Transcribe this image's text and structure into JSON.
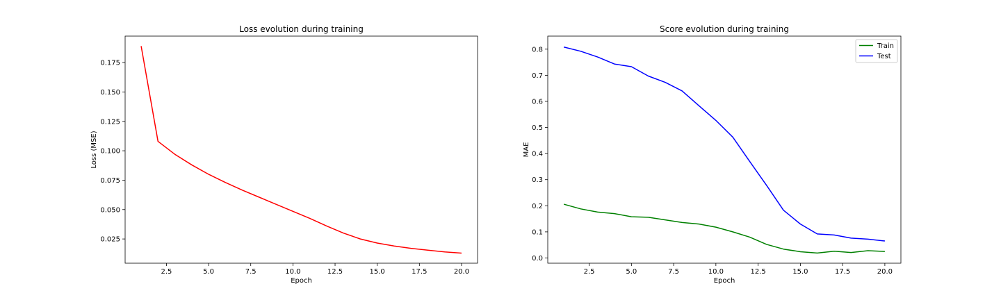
{
  "chart_data": [
    {
      "type": "line",
      "title": "Loss evolution during training",
      "xlabel": "Epoch",
      "ylabel": "Loss (MSE)",
      "xlim": [
        0.05,
        20.95
      ],
      "ylim": [
        0.0044,
        0.1975
      ],
      "xticks": [
        2.5,
        5.0,
        7.5,
        10.0,
        12.5,
        15.0,
        17.5,
        20.0
      ],
      "xtick_labels": [
        "2.5",
        "5.0",
        "7.5",
        "10.0",
        "12.5",
        "15.0",
        "17.5",
        "20.0"
      ],
      "yticks": [
        0.025,
        0.05,
        0.075,
        0.1,
        0.125,
        0.15,
        0.175
      ],
      "ytick_labels": [
        "0.025",
        "0.050",
        "0.075",
        "0.100",
        "0.125",
        "0.150",
        "0.175"
      ],
      "grid": false,
      "series": [
        {
          "name": "",
          "color": "#ff0000",
          "x": [
            1,
            2,
            3,
            4,
            5,
            6,
            7,
            8,
            9,
            10,
            11,
            12,
            13,
            14,
            15,
            16,
            17,
            18,
            19,
            20
          ],
          "y": [
            0.189,
            0.108,
            0.097,
            0.088,
            0.08,
            0.073,
            0.0665,
            0.0605,
            0.0545,
            0.0485,
            0.0425,
            0.036,
            0.03,
            0.025,
            0.0215,
            0.019,
            0.017,
            0.0155,
            0.014,
            0.013
          ]
        }
      ]
    },
    {
      "type": "line",
      "title": "Score evolution during training",
      "xlabel": "Epoch",
      "ylabel": "MAE",
      "xlim": [
        0.05,
        20.95
      ],
      "ylim": [
        -0.02,
        0.85
      ],
      "xticks": [
        2.5,
        5.0,
        7.5,
        10.0,
        12.5,
        15.0,
        17.5,
        20.0
      ],
      "xtick_labels": [
        "2.5",
        "5.0",
        "7.5",
        "10.0",
        "12.5",
        "15.0",
        "17.5",
        "20.0"
      ],
      "yticks": [
        0.0,
        0.1,
        0.2,
        0.3,
        0.4,
        0.5,
        0.6,
        0.7,
        0.8
      ],
      "ytick_labels": [
        "0.0",
        "0.1",
        "0.2",
        "0.3",
        "0.4",
        "0.5",
        "0.6",
        "0.7",
        "0.8"
      ],
      "grid": false,
      "legend": "top-right",
      "series": [
        {
          "name": "Train",
          "color": "#008000",
          "x": [
            1,
            2,
            3,
            4,
            5,
            6,
            7,
            8,
            9,
            10,
            11,
            12,
            13,
            14,
            15,
            16,
            17,
            18,
            19,
            20
          ],
          "y": [
            0.206,
            0.188,
            0.176,
            0.17,
            0.158,
            0.156,
            0.146,
            0.136,
            0.13,
            0.118,
            0.1,
            0.08,
            0.052,
            0.034,
            0.024,
            0.019,
            0.026,
            0.021,
            0.028,
            0.025
          ]
        },
        {
          "name": "Test",
          "color": "#0000ff",
          "x": [
            1,
            2,
            3,
            4,
            5,
            6,
            7,
            8,
            9,
            10,
            11,
            12,
            13,
            14,
            15,
            16,
            17,
            18,
            19,
            20
          ],
          "y": [
            0.808,
            0.792,
            0.77,
            0.743,
            0.733,
            0.697,
            0.673,
            0.64,
            0.583,
            0.527,
            0.463,
            0.37,
            0.278,
            0.183,
            0.13,
            0.092,
            0.088,
            0.076,
            0.072,
            0.065
          ]
        }
      ]
    }
  ]
}
